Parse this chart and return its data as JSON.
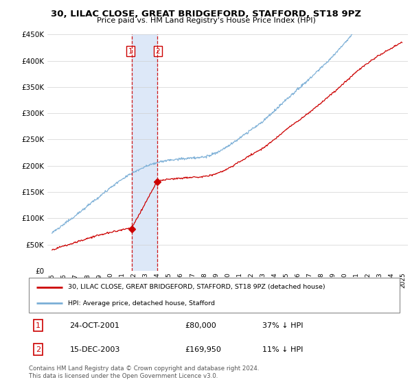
{
  "title": "30, LILAC CLOSE, GREAT BRIDGEFORD, STAFFORD, ST18 9PZ",
  "subtitle": "Price paid vs. HM Land Registry's House Price Index (HPI)",
  "legend_line1": "30, LILAC CLOSE, GREAT BRIDGEFORD, STAFFORD, ST18 9PZ (detached house)",
  "legend_line2": "HPI: Average price, detached house, Stafford",
  "transaction1_date": "24-OCT-2001",
  "transaction1_price": "£80,000",
  "transaction1_hpi": "37% ↓ HPI",
  "transaction2_date": "15-DEC-2003",
  "transaction2_price": "£169,950",
  "transaction2_hpi": "11% ↓ HPI",
  "copyright": "Contains HM Land Registry data © Crown copyright and database right 2024.\nThis data is licensed under the Open Government Licence v3.0.",
  "property_color": "#cc0000",
  "hpi_color": "#7aaed6",
  "highlight_color": "#dde8f8",
  "transaction_marker_color": "#cc0000",
  "transaction_vline_color": "#cc0000",
  "ylim": [
    0,
    450000
  ],
  "yticks": [
    0,
    50000,
    100000,
    150000,
    200000,
    250000,
    300000,
    350000,
    400000,
    450000
  ],
  "background_color": "#ffffff",
  "t1_year": 2001.79,
  "t2_year": 2003.96,
  "price1": 80000,
  "price2": 169950
}
